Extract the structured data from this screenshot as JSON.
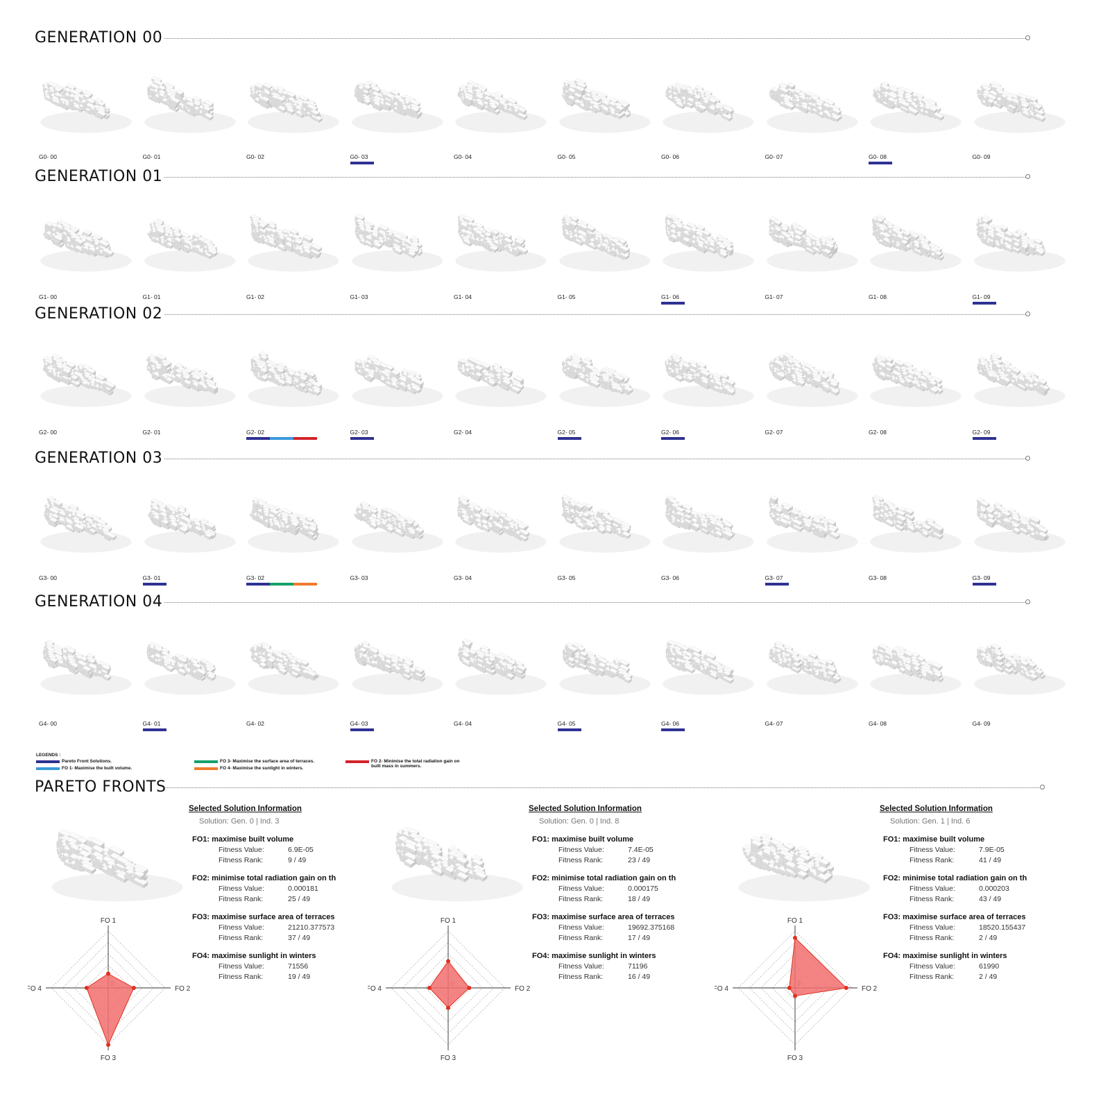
{
  "generations": [
    {
      "title": "GENERATION 00",
      "individuals": [
        {
          "label": "G0- 00",
          "tags": []
        },
        {
          "label": "G0- 01",
          "tags": []
        },
        {
          "label": "G0- 02",
          "tags": []
        },
        {
          "label": "G0- 03",
          "tags": [
            "pareto"
          ]
        },
        {
          "label": "G0- 04",
          "tags": []
        },
        {
          "label": "G0- 05",
          "tags": []
        },
        {
          "label": "G0- 06",
          "tags": []
        },
        {
          "label": "G0- 07",
          "tags": []
        },
        {
          "label": "G0- 08",
          "tags": [
            "pareto"
          ]
        },
        {
          "label": "G0- 09",
          "tags": []
        }
      ]
    },
    {
      "title": "GENERATION 01",
      "individuals": [
        {
          "label": "G1- 00",
          "tags": []
        },
        {
          "label": "G1- 01",
          "tags": []
        },
        {
          "label": "G1- 02",
          "tags": []
        },
        {
          "label": "G1- 03",
          "tags": []
        },
        {
          "label": "G1- 04",
          "tags": []
        },
        {
          "label": "G1- 05",
          "tags": []
        },
        {
          "label": "G1- 06",
          "tags": [
            "pareto"
          ]
        },
        {
          "label": "G1- 07",
          "tags": []
        },
        {
          "label": "G1- 08",
          "tags": []
        },
        {
          "label": "G1- 09",
          "tags": [
            "pareto"
          ]
        }
      ]
    },
    {
      "title": "GENERATION 02",
      "individuals": [
        {
          "label": "G2- 00",
          "tags": []
        },
        {
          "label": "G2- 01",
          "tags": []
        },
        {
          "label": "G2- 02",
          "tags": [
            "pareto",
            "fo1",
            "fo2"
          ]
        },
        {
          "label": "G2- 03",
          "tags": [
            "pareto"
          ]
        },
        {
          "label": "G2- 04",
          "tags": []
        },
        {
          "label": "G2- 05",
          "tags": [
            "pareto"
          ]
        },
        {
          "label": "G2- 06",
          "tags": [
            "pareto"
          ]
        },
        {
          "label": "G2- 07",
          "tags": []
        },
        {
          "label": "G2- 08",
          "tags": []
        },
        {
          "label": "G2- 09",
          "tags": [
            "pareto"
          ]
        }
      ]
    },
    {
      "title": "GENERATION 03",
      "individuals": [
        {
          "label": "G3- 00",
          "tags": []
        },
        {
          "label": "G3- 01",
          "tags": [
            "pareto"
          ]
        },
        {
          "label": "G3- 02",
          "tags": [
            "pareto",
            "fo3",
            "fo4"
          ]
        },
        {
          "label": "G3- 03",
          "tags": []
        },
        {
          "label": "G3- 04",
          "tags": []
        },
        {
          "label": "G3- 05",
          "tags": []
        },
        {
          "label": "G3- 06",
          "tags": []
        },
        {
          "label": "G3- 07",
          "tags": [
            "pareto"
          ]
        },
        {
          "label": "G3- 08",
          "tags": []
        },
        {
          "label": "G3- 09",
          "tags": [
            "pareto"
          ]
        }
      ]
    },
    {
      "title": "GENERATION 04",
      "individuals": [
        {
          "label": "G4- 00",
          "tags": []
        },
        {
          "label": "G4- 01",
          "tags": [
            "pareto"
          ]
        },
        {
          "label": "G4- 02",
          "tags": []
        },
        {
          "label": "G4- 03",
          "tags": [
            "pareto"
          ]
        },
        {
          "label": "G4- 04",
          "tags": []
        },
        {
          "label": "G4- 05",
          "tags": [
            "pareto"
          ]
        },
        {
          "label": "G4- 06",
          "tags": [
            "pareto"
          ]
        },
        {
          "label": "G4- 07",
          "tags": []
        },
        {
          "label": "G4- 08",
          "tags": []
        },
        {
          "label": "G4- 09",
          "tags": []
        }
      ]
    }
  ],
  "tag_colors": {
    "pareto": "#2e3192",
    "fo1": "#3a9ad9",
    "fo2": "#d2232a",
    "fo3": "#14a06a",
    "fo4": "#f07b2c"
  },
  "legend": {
    "title": "LEGENDS :",
    "items": [
      {
        "key": "pareto",
        "text": "Pareto Front Solutions."
      },
      {
        "key": "fo1",
        "text": "FO 1-  Maximise the built volume."
      },
      {
        "key": "fo3",
        "text": "FO 3-  Maximise the surface area of terraces."
      },
      {
        "key": "fo4",
        "text": "FO 4-  Maximise the sunlight in winters."
      },
      {
        "key": "fo2",
        "text": "FO 2-  Minimise the total radiation gain on",
        "text2": "built mass in summers."
      }
    ]
  },
  "pareto_section": {
    "title": "PARETO FRONTS",
    "info_title": "Selected Solution Information",
    "fitness_value_label": "Fitness Value:",
    "fitness_rank_label": "Fitness Rank:",
    "axis_labels": [
      "FO 1",
      "FO 2",
      "FO 3",
      "FO 4"
    ],
    "center_label": "0",
    "fill_color": "#f26d6d",
    "stroke_color": "#e0301e",
    "solutions": [
      {
        "solution": "Solution: Gen. 0 | Ind. 3",
        "objectives": [
          {
            "head": "FO1:  maximise built volume",
            "value": "6.9E-05",
            "rank": "9 / 49"
          },
          {
            "head": "FO2:  minimise total radiation gain on th",
            "value": "0.000181",
            "rank": "25 / 49"
          },
          {
            "head": "FO3:  maximise surface area of terraces",
            "value": "21210.377573",
            "rank": "37 / 49"
          },
          {
            "head": "FO4:  maximise sunlight in winters",
            "value": "71556",
            "rank": "19 / 49"
          }
        ],
        "radar": [
          0.25,
          0.45,
          1.0,
          0.38
        ]
      },
      {
        "solution": "Solution: Gen. 0 | Ind. 8",
        "objectives": [
          {
            "head": "FO1:  maximise built volume",
            "value": "7.4E-05",
            "rank": "23 / 49"
          },
          {
            "head": "FO2:  minimise total radiation gain on th",
            "value": "0.000175",
            "rank": "18 / 49"
          },
          {
            "head": "FO3:  maximise surface area of terraces",
            "value": "19692.375168",
            "rank": "17 / 49"
          },
          {
            "head": "FO4:  maximise sunlight in winters",
            "value": "71196",
            "rank": "16 / 49"
          }
        ],
        "radar": [
          0.47,
          0.37,
          0.35,
          0.33
        ]
      },
      {
        "solution": "Solution: Gen. 1 | Ind. 6",
        "objectives": [
          {
            "head": "FO1:  maximise built volume",
            "value": "7.9E-05",
            "rank": "41 / 49"
          },
          {
            "head": "FO2:  minimise total radiation gain on th",
            "value": "0.000203",
            "rank": "43 / 49"
          },
          {
            "head": "FO3:  maximise surface area of terraces",
            "value": "18520.155437",
            "rank": "2 / 49"
          },
          {
            "head": "FO4:  maximise sunlight in winters",
            "value": "61990",
            "rank": "2 / 49"
          }
        ],
        "radar": [
          0.88,
          0.9,
          0.14,
          0.1
        ]
      }
    ]
  }
}
